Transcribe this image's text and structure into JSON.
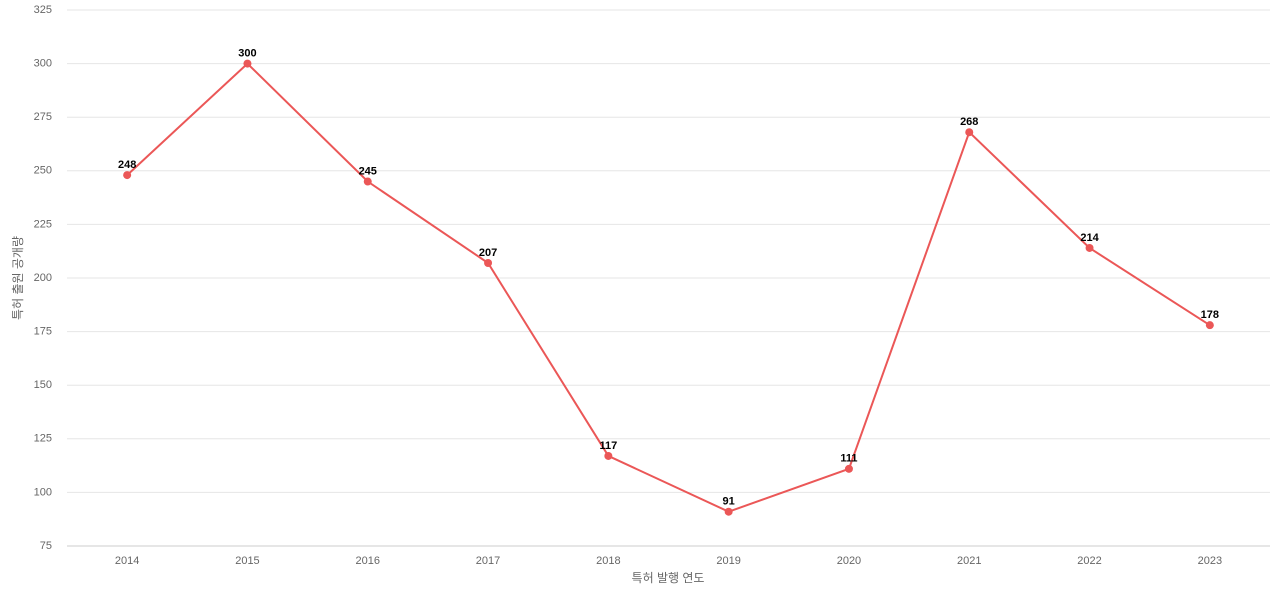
{
  "chart_data": {
    "type": "line",
    "x_label": "특허 발행 연도",
    "y_label": "특허 출원 공개량",
    "categories": [
      "2014",
      "2015",
      "2016",
      "2017",
      "2018",
      "2019",
      "2020",
      "2021",
      "2022",
      "2023"
    ],
    "values": [
      248,
      300,
      245,
      207,
      117,
      91,
      111,
      268,
      214,
      178
    ],
    "color": "#eb5757",
    "ylim": [
      75,
      325
    ],
    "yticks": [
      75,
      100,
      125,
      150,
      175,
      200,
      225,
      250,
      275,
      300,
      325
    ],
    "grid": true
  }
}
